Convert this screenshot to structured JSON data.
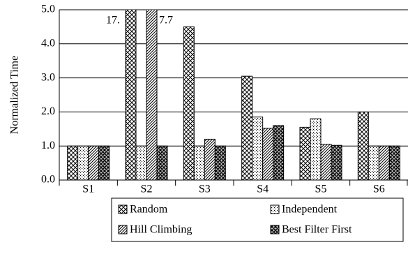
{
  "chart_data": {
    "type": "bar",
    "y_label": "Normalized Time",
    "categories": [
      "S1",
      "S2",
      "S3",
      "S4",
      "S5",
      "S6"
    ],
    "series": [
      {
        "name": "Random",
        "color": "#000000",
        "pattern": "diamond",
        "values": [
          1.0,
          17,
          4.5,
          3.05,
          1.55,
          2.0
        ],
        "value_labels": [
          null,
          "17.",
          null,
          null,
          null,
          null
        ]
      },
      {
        "name": "Independent",
        "color": "#000000",
        "pattern": "dots",
        "values": [
          1.0,
          1.0,
          1.0,
          1.85,
          1.8,
          1.0
        ]
      },
      {
        "name": "Hill Climbing",
        "color": "#000000",
        "pattern": "diagonal",
        "values": [
          1.0,
          7.7,
          1.2,
          1.52,
          1.05,
          1.0
        ],
        "value_labels": [
          null,
          "7.7",
          null,
          null,
          null,
          null
        ]
      },
      {
        "name": "Best Filter First",
        "color": "#000000",
        "pattern": "grid",
        "values": [
          1.0,
          1.0,
          1.0,
          1.6,
          1.02,
          1.0
        ]
      }
    ],
    "ylim": [
      0,
      5
    ],
    "yticks": [
      {
        "value": 0,
        "label": "0.0"
      },
      {
        "value": 1,
        "label": "1.0"
      },
      {
        "value": 2,
        "label": "2.0"
      },
      {
        "value": 3,
        "label": "3.0"
      },
      {
        "value": 4,
        "label": "4.0"
      },
      {
        "value": 5,
        "label": "5.0"
      }
    ],
    "grid": true,
    "legend": "bottom"
  }
}
